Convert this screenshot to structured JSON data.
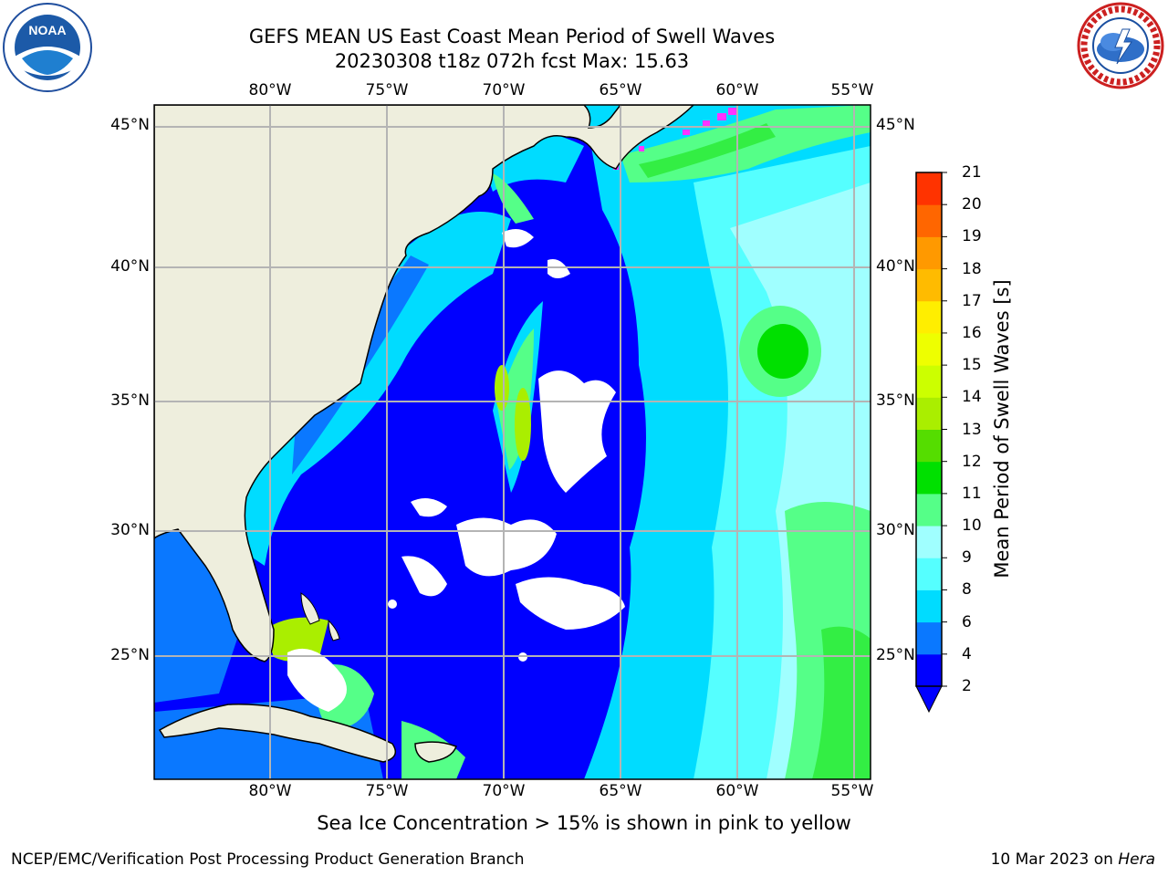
{
  "header": {
    "title_line1": "GEFS MEAN US East Coast Mean Period of Swell Waves",
    "title_line2": "20230308 t18z 072h fcst   Max: 15.63"
  },
  "logos": {
    "left": {
      "icon": "noaa-logo",
      "text": "NOAA"
    },
    "right": {
      "icon": "national-weather-service-logo"
    }
  },
  "map": {
    "projection": "cylindrical",
    "lon_range": [
      -85,
      -54
    ],
    "lat_range": [
      20.5,
      45.8
    ],
    "lon_ticks": [
      "80°W",
      "75°W",
      "70°W",
      "65°W",
      "60°W",
      "55°W"
    ],
    "lat_ticks": [
      "45°N",
      "40°N",
      "35°N",
      "30°N",
      "25°N"
    ],
    "grid": true,
    "land_color": "#eeeedd",
    "features": [
      "US East Coast",
      "Florida",
      "Bahamas",
      "Cuba",
      "Hispaniola",
      "Nova Scotia",
      "Gulf of Maine"
    ]
  },
  "colorbar": {
    "title": "Mean Period of Swell Waves [s]",
    "labels": [
      "2",
      "4",
      "6",
      "8",
      "9",
      "10",
      "11",
      "12",
      "13",
      "14",
      "15",
      "16",
      "17",
      "18",
      "19",
      "20",
      "21"
    ],
    "colors": [
      "#0000ff",
      "#0a78ff",
      "#00dcff",
      "#55ffff",
      "#a0ffff",
      "#55ff88",
      "#00e000",
      "#55dd00",
      "#aaee00",
      "#ccff00",
      "#eeff00",
      "#ffee00",
      "#ffbb00",
      "#ff9900",
      "#ff6600",
      "#ff3300",
      "#ff0000"
    ],
    "extend": "min"
  },
  "notes": {
    "ice": "Sea Ice Concentration > 15% is shown in pink to yellow"
  },
  "footer": {
    "left": "NCEP/EMC/Verification Post Processing Product Generation Branch",
    "date": "10 Mar 2023 on ",
    "host": "Hera"
  }
}
